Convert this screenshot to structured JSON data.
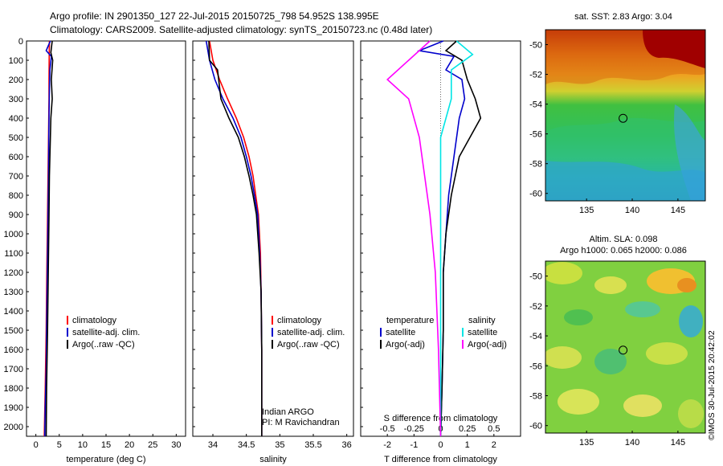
{
  "header": {
    "line1": "Argo profile: IN 2901350_127 22-Jul-2015 20150725_798 54.952S 138.995E",
    "line2": "Climatology: CARS2009. Satellite-adjusted climatology: synTS_20150723.nc (0.48d later)"
  },
  "watermark": "©IMOS 30-Jul-2015 20:42:02",
  "colors": {
    "climatology": "#ff0000",
    "satellite": "#0000cc",
    "argo": "#000000",
    "satellite_s": "#00e5e5",
    "argo_s_adj": "#ff00ff"
  },
  "chart_data": [
    {
      "id": "temperature",
      "type": "line",
      "xlabel": "temperature (deg C)",
      "ylabel": "",
      "xlim": [
        -2,
        32
      ],
      "ylim": [
        2050,
        0
      ],
      "xticks": [
        0,
        5,
        10,
        15,
        20,
        25,
        30
      ],
      "yticks": [
        0,
        100,
        200,
        300,
        400,
        500,
        600,
        700,
        800,
        900,
        1000,
        1100,
        1200,
        1300,
        1400,
        1500,
        1600,
        1700,
        1800,
        1900,
        2000
      ],
      "legend": [
        "climatology",
        "satellite-adj. clim.",
        "Argo(..raw -QC)"
      ],
      "series": [
        {
          "name": "climatology",
          "color": "#ff0000",
          "x": [
            2.9,
            2.85,
            2.8,
            2.8,
            2.75,
            2.7,
            2.6,
            2.5,
            2.4,
            2.3,
            2.2,
            2.0,
            1.8
          ],
          "y": [
            0,
            100,
            200,
            300,
            400,
            500,
            700,
            900,
            1100,
            1300,
            1500,
            1800,
            2050
          ]
        },
        {
          "name": "satellite-adj. clim.",
          "color": "#0000cc",
          "x": [
            3.1,
            2.2,
            3.3,
            3.0,
            2.9,
            2.8,
            2.75,
            2.7,
            2.6,
            2.5,
            2.4,
            2.3,
            2.2,
            2.0,
            1.9
          ],
          "y": [
            0,
            50,
            80,
            150,
            250,
            400,
            500,
            700,
            900,
            1100,
            1300,
            1500,
            1700,
            1900,
            2050
          ]
        },
        {
          "name": "Argo(..raw -QC)",
          "color": "#000000",
          "x": [
            3.5,
            3.2,
            3.6,
            3.3,
            3.5,
            3.2,
            3.1,
            2.9,
            2.8,
            2.7,
            2.6,
            2.5,
            2.3,
            2.2
          ],
          "y": [
            0,
            60,
            100,
            200,
            300,
            400,
            500,
            700,
            900,
            1100,
            1300,
            1500,
            1800,
            2050
          ]
        }
      ]
    },
    {
      "id": "salinity",
      "type": "line",
      "xlabel": "salinity",
      "ylabel": "",
      "xlim": [
        33.7,
        36.1
      ],
      "ylim": [
        2050,
        0
      ],
      "xticks": [
        34,
        34.5,
        35,
        35.5,
        36
      ],
      "legend": [
        "climatology",
        "satellite-adj. clim.",
        "Argo(..raw -QC)"
      ],
      "annotation": [
        "Indian ARGO",
        "PI: M Ravichandran"
      ],
      "series": [
        {
          "name": "climatology",
          "color": "#ff0000",
          "x": [
            33.95,
            34.0,
            34.1,
            34.22,
            34.35,
            34.46,
            34.54,
            34.6,
            34.64,
            34.68,
            34.71,
            34.72,
            34.73,
            34.73
          ],
          "y": [
            0,
            100,
            200,
            300,
            400,
            500,
            600,
            700,
            800,
            900,
            1100,
            1300,
            1600,
            2050
          ]
        },
        {
          "name": "satellite-adj. clim.",
          "color": "#0000cc",
          "x": [
            33.9,
            33.95,
            34.03,
            34.15,
            34.3,
            34.42,
            34.5,
            34.57,
            34.62,
            34.67,
            34.7,
            34.72,
            34.73,
            34.73
          ],
          "y": [
            0,
            100,
            200,
            300,
            400,
            500,
            600,
            700,
            800,
            900,
            1100,
            1300,
            1600,
            2050
          ]
        },
        {
          "name": "Argo(..raw -QC)",
          "color": "#000000",
          "x": [
            33.94,
            33.95,
            34.07,
            34.12,
            34.24,
            34.38,
            34.47,
            34.54,
            34.6,
            34.65,
            34.69,
            34.72,
            34.73,
            34.73
          ],
          "y": [
            0,
            100,
            150,
            300,
            400,
            500,
            600,
            700,
            800,
            900,
            1100,
            1300,
            1600,
            2050
          ]
        }
      ]
    },
    {
      "id": "difference",
      "type": "line",
      "xlabel": "T difference from climatology",
      "xlabel_top": "S difference from climatology",
      "xlim": [
        -3,
        3
      ],
      "xlim_top": [
        -0.75,
        0.75
      ],
      "ylim": [
        2050,
        0
      ],
      "xticks": [
        -2,
        -1,
        0,
        1,
        2
      ],
      "xticks_top": [
        -0.5,
        -0.25,
        0,
        0.25,
        0.5
      ],
      "legend_titles": [
        "temperature",
        "salinity"
      ],
      "legend": [
        "satellite",
        "Argo(-adj)",
        "satellite",
        "Argo(-adj)"
      ],
      "series": [
        {
          "name": "temperature satellite",
          "color": "#0000cc",
          "x": [
            0.1,
            -0.8,
            0.5,
            0.2,
            0.8,
            0.9,
            0.7,
            0.5,
            0.3,
            0.2,
            0.1,
            0.1,
            0.05,
            0.0
          ],
          "y": [
            0,
            50,
            80,
            150,
            200,
            300,
            400,
            600,
            800,
            1000,
            1200,
            1500,
            1800,
            2050
          ]
        },
        {
          "name": "temperature Argo(-adj)",
          "color": "#000000",
          "x": [
            0.6,
            0.2,
            0.8,
            1.0,
            1.3,
            1.5,
            1.1,
            0.7,
            0.4,
            0.2,
            0.1,
            0.1,
            0.05,
            0.0
          ],
          "y": [
            0,
            50,
            100,
            200,
            300,
            400,
            500,
            600,
            800,
            1000,
            1200,
            1500,
            1800,
            2050
          ]
        },
        {
          "name": "salinity satellite",
          "color": "#00e5e5",
          "x": [
            0.15,
            0.3,
            0.1,
            0.1,
            0.0,
            0.0,
            0.0,
            0.0,
            0.0,
            0.0
          ],
          "y": [
            0,
            70,
            150,
            300,
            500,
            700,
            1000,
            1400,
            1800,
            2050
          ]
        },
        {
          "name": "salinity Argo(-adj)",
          "color": "#ff00ff",
          "x": [
            -0.1,
            -0.3,
            -0.5,
            -0.3,
            -0.2,
            -0.15,
            -0.1,
            -0.05,
            -0.02,
            0.0
          ],
          "y": [
            0,
            100,
            200,
            300,
            500,
            700,
            900,
            1200,
            1600,
            2050
          ]
        }
      ]
    },
    {
      "id": "sst-map",
      "type": "heatmap",
      "title": "sat. SST: 2.83 Argo: 3.04",
      "xlim": [
        130.5,
        148
      ],
      "ylim": [
        -60.5,
        -49
      ],
      "xticks": [
        135,
        140,
        145
      ],
      "yticks": [
        -50,
        -52,
        -54,
        -56,
        -58,
        -60
      ],
      "marker": {
        "lon": 138.995,
        "lat": -54.952
      }
    },
    {
      "id": "sla-map",
      "type": "heatmap",
      "title": "Altim. SLA: 0.098",
      "subtitle": "Argo h1000: 0.065 h2000: 0.086",
      "xlim": [
        130.5,
        148
      ],
      "ylim": [
        -60.5,
        -49
      ],
      "xticks": [
        135,
        140,
        145
      ],
      "yticks": [
        -50,
        -52,
        -54,
        -56,
        -58,
        -60
      ],
      "marker": {
        "lon": 138.995,
        "lat": -54.952
      }
    }
  ]
}
